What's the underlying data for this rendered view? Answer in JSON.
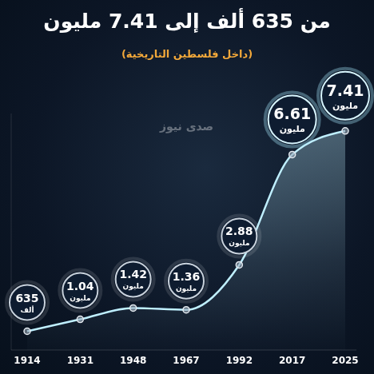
{
  "chart_data": {
    "type": "area",
    "title": "من 635 ألف إلى 7.41 مليون",
    "subtitle": "(داخل فلسطين التاريخية)",
    "watermark": "صدى نيوز",
    "categories": [
      "1914",
      "1931",
      "1948",
      "1967",
      "1992",
      "2017",
      "2025"
    ],
    "values": [
      0.635,
      1.04,
      1.42,
      1.36,
      2.88,
      6.61,
      7.41
    ],
    "value_labels": [
      "635 ألف",
      "1.04 مليون",
      "1.42 مليون",
      "1.36 مليون",
      "2.88 مليون",
      "6.61 مليون",
      "7.41 مليون"
    ],
    "ylim": [
      0,
      8
    ],
    "color": "#bfefff",
    "data_labels": true,
    "tick_labels": "x",
    "grid": false
  }
}
